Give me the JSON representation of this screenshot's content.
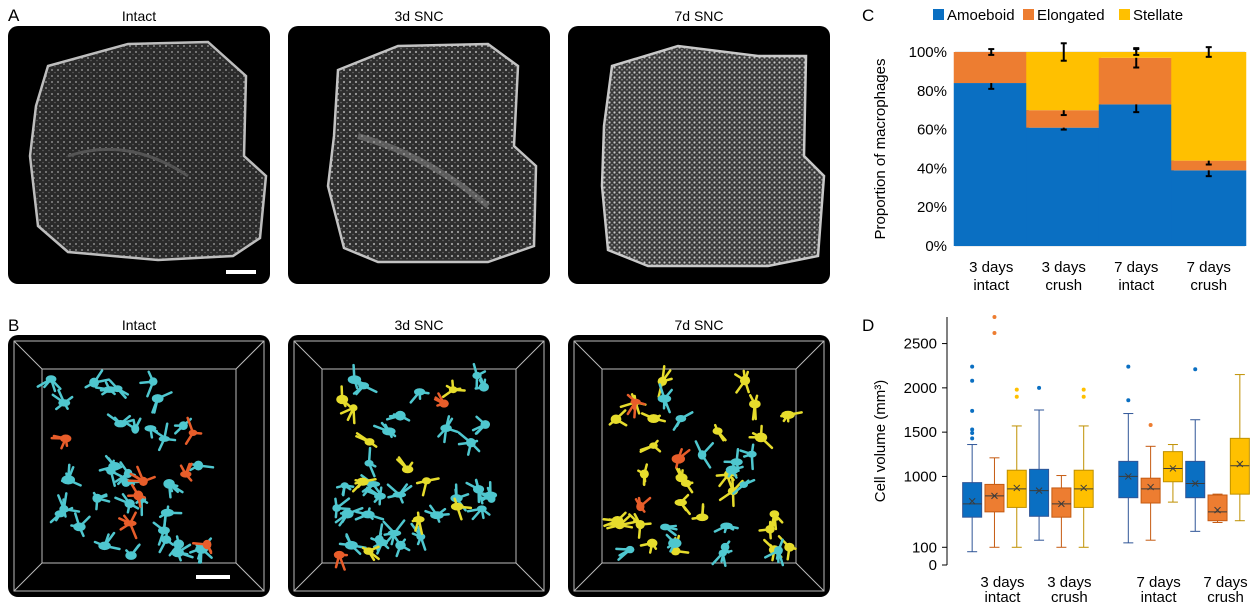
{
  "panels": {
    "a": {
      "letter": "A",
      "titles": [
        "Intact",
        "3d SNC",
        "7d SNC"
      ]
    },
    "b": {
      "letter": "B",
      "titles": [
        "Intact",
        "3d SNC",
        "7d SNC"
      ]
    },
    "c": {
      "letter": "C"
    },
    "d": {
      "letter": "D"
    }
  },
  "colors": {
    "amoeboid": "#0a6fc2",
    "elongated": "#ed7d31",
    "stellate": "#ffc000",
    "cell_cyan": "#4fc7cf",
    "cell_orange": "#e85d2a",
    "cell_yellow": "#e6dc2c"
  },
  "chart_data": [
    {
      "type": "bar",
      "stacked": true,
      "categories": [
        [
          "3 days",
          "intact"
        ],
        [
          "3 days",
          "crush"
        ],
        [
          "7 days",
          "intact"
        ],
        [
          "7 days",
          "crush"
        ]
      ],
      "series": [
        {
          "name": "Amoeboid",
          "values": [
            0.84,
            0.61,
            0.73,
            0.39
          ]
        },
        {
          "name": "Elongated",
          "values": [
            0.16,
            0.09,
            0.24,
            0.05
          ]
        },
        {
          "name": "Stellate",
          "values": [
            0.0,
            0.3,
            0.03,
            0.56
          ]
        }
      ],
      "error_bars": {
        "Amoeboid": [
          0.03,
          0.01,
          0.04,
          0.03
        ],
        "Elongated": [
          0.015,
          0.025,
          0.05,
          0.02
        ],
        "Stellate": [
          0.0,
          0.045,
          0.015,
          0.025
        ]
      },
      "ylabel": "Proportion of macrophages",
      "yticks": [
        "0%",
        "20%",
        "40%",
        "60%",
        "80%",
        "100%"
      ],
      "ylim": [
        0,
        1
      ],
      "grid": true,
      "legend": "top"
    },
    {
      "type": "box",
      "groups": [
        [
          "3 days",
          "intact"
        ],
        [
          "3 days",
          "crush"
        ],
        [
          "7 days",
          "intact"
        ],
        [
          "7 days",
          "crush"
        ]
      ],
      "ylabel": "Cell volume (mm³)",
      "yticks": [
        "0",
        "100",
        "1000",
        "1500",
        "2000",
        "2500"
      ],
      "ylim": [
        0,
        2800
      ],
      "series": [
        {
          "name": "Amoeboid",
          "boxes": [
            {
              "min": 150,
              "q1": 540,
              "median": 690,
              "q3": 930,
              "max": 1360,
              "mean": 720,
              "outliers": [
                1430,
                1490,
                1530,
                1740,
                2080,
                2240
              ]
            },
            {
              "min": 280,
              "q1": 550,
              "median": 840,
              "q3": 1080,
              "max": 1750,
              "mean": 840,
              "outliers": [
                2000
              ]
            },
            {
              "min": 250,
              "q1": 760,
              "median": 1000,
              "q3": 1170,
              "max": 1710,
              "mean": 1000,
              "outliers": [
                1860,
                2240
              ]
            },
            {
              "min": 380,
              "q1": 760,
              "median": 920,
              "q3": 1170,
              "max": 1640,
              "mean": 920,
              "outliers": [
                2210
              ]
            }
          ]
        },
        {
          "name": "Elongated",
          "boxes": [
            {
              "min": 200,
              "q1": 600,
              "median": 780,
              "q3": 910,
              "max": 1210,
              "mean": 780,
              "outliers": [
                2620,
                2800
              ]
            },
            {
              "min": 200,
              "q1": 540,
              "median": 690,
              "q3": 870,
              "max": 1010,
              "mean": 690,
              "outliers": []
            },
            {
              "min": 280,
              "q1": 700,
              "median": 860,
              "q3": 980,
              "max": 1340,
              "mean": 880,
              "outliers": [
                1580
              ]
            },
            {
              "min": 480,
              "q1": 500,
              "median": 600,
              "q3": 790,
              "max": 800,
              "mean": 620,
              "outliers": []
            }
          ]
        },
        {
          "name": "Stellate",
          "boxes": [
            {
              "min": 200,
              "q1": 650,
              "median": 860,
              "q3": 1070,
              "max": 1570,
              "mean": 870,
              "outliers": [
                1900,
                1980
              ]
            },
            {
              "min": 710,
              "q1": 940,
              "median": 1090,
              "q3": 1280,
              "max": 1360,
              "mean": 1090,
              "outliers": []
            },
            {
              "min": 500,
              "q1": 800,
              "median": 1120,
              "q3": 1430,
              "max": 2150,
              "mean": 1140,
              "outliers": []
            }
          ]
        }
      ],
      "box_positions": [
        0,
        1,
        2,
        3,
        4,
        5,
        7,
        8,
        9,
        10,
        11
      ],
      "grid": false
    }
  ]
}
